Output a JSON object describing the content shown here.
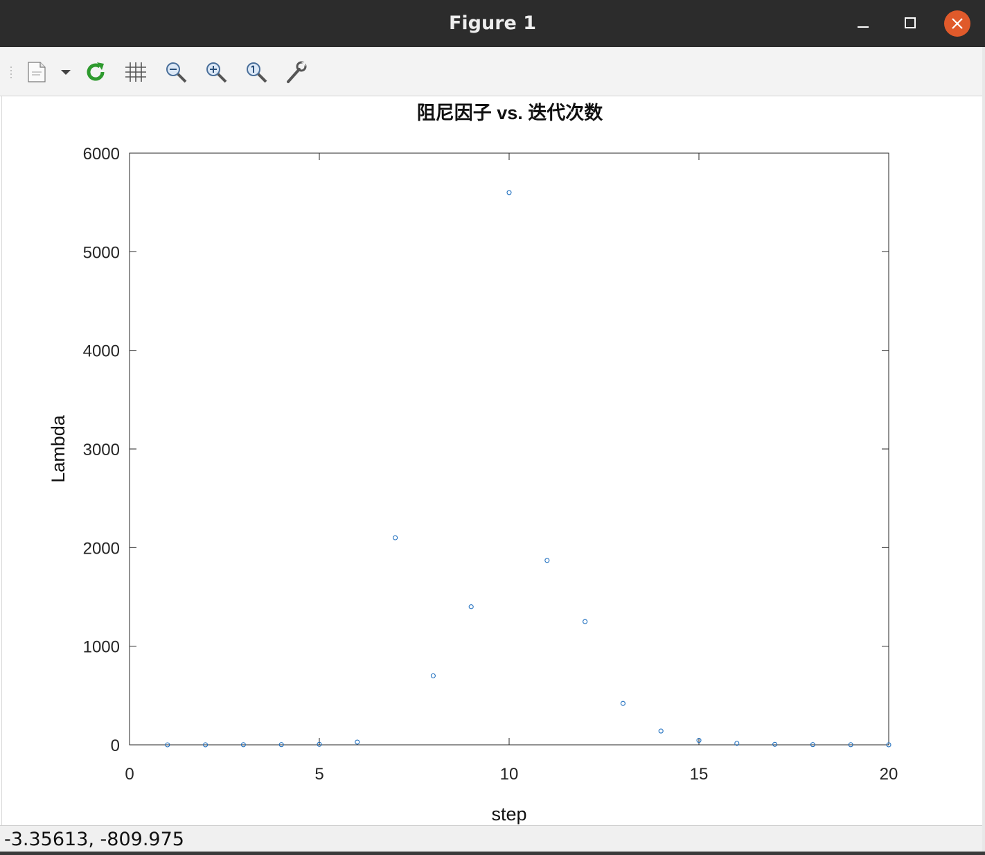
{
  "window": {
    "title": "Figure 1",
    "controls": [
      "minimize",
      "maximize",
      "close"
    ],
    "close_color": "#e05a2b"
  },
  "toolbar": {
    "buttons": [
      {
        "name": "new-figure-icon",
        "tooltip": ""
      },
      {
        "name": "dropdown-arrow-icon"
      },
      {
        "name": "refresh-icon"
      },
      {
        "name": "grid-icon"
      },
      {
        "name": "zoom-out-icon"
      },
      {
        "name": "zoom-in-icon"
      },
      {
        "name": "zoom-reset-icon"
      },
      {
        "name": "settings-wrench-icon"
      }
    ]
  },
  "status": {
    "coords": "-3.35613, -809.975"
  },
  "chart_data": {
    "type": "scatter",
    "title": "阻尼因子 vs. 迭代次数",
    "xlabel": "step",
    "ylabel": "Lambda",
    "xlim": [
      0,
      20
    ],
    "ylim": [
      0,
      6000
    ],
    "xticks": [
      0,
      5,
      10,
      15,
      20
    ],
    "yticks": [
      0,
      1000,
      2000,
      3000,
      4000,
      5000,
      6000
    ],
    "marker": "circle",
    "color": "#1f6fbf",
    "grid": false,
    "series": [
      {
        "x": [
          1,
          2,
          3,
          4,
          5,
          6,
          7,
          8,
          9,
          10,
          11,
          12,
          13,
          14,
          15,
          16,
          17,
          18,
          19,
          20
        ],
        "y": [
          0.01,
          0.1,
          1,
          2,
          5,
          28,
          2100,
          700,
          1400,
          5600,
          1870,
          1250,
          420,
          140,
          45,
          15,
          5,
          2,
          1,
          0.3
        ]
      }
    ]
  }
}
